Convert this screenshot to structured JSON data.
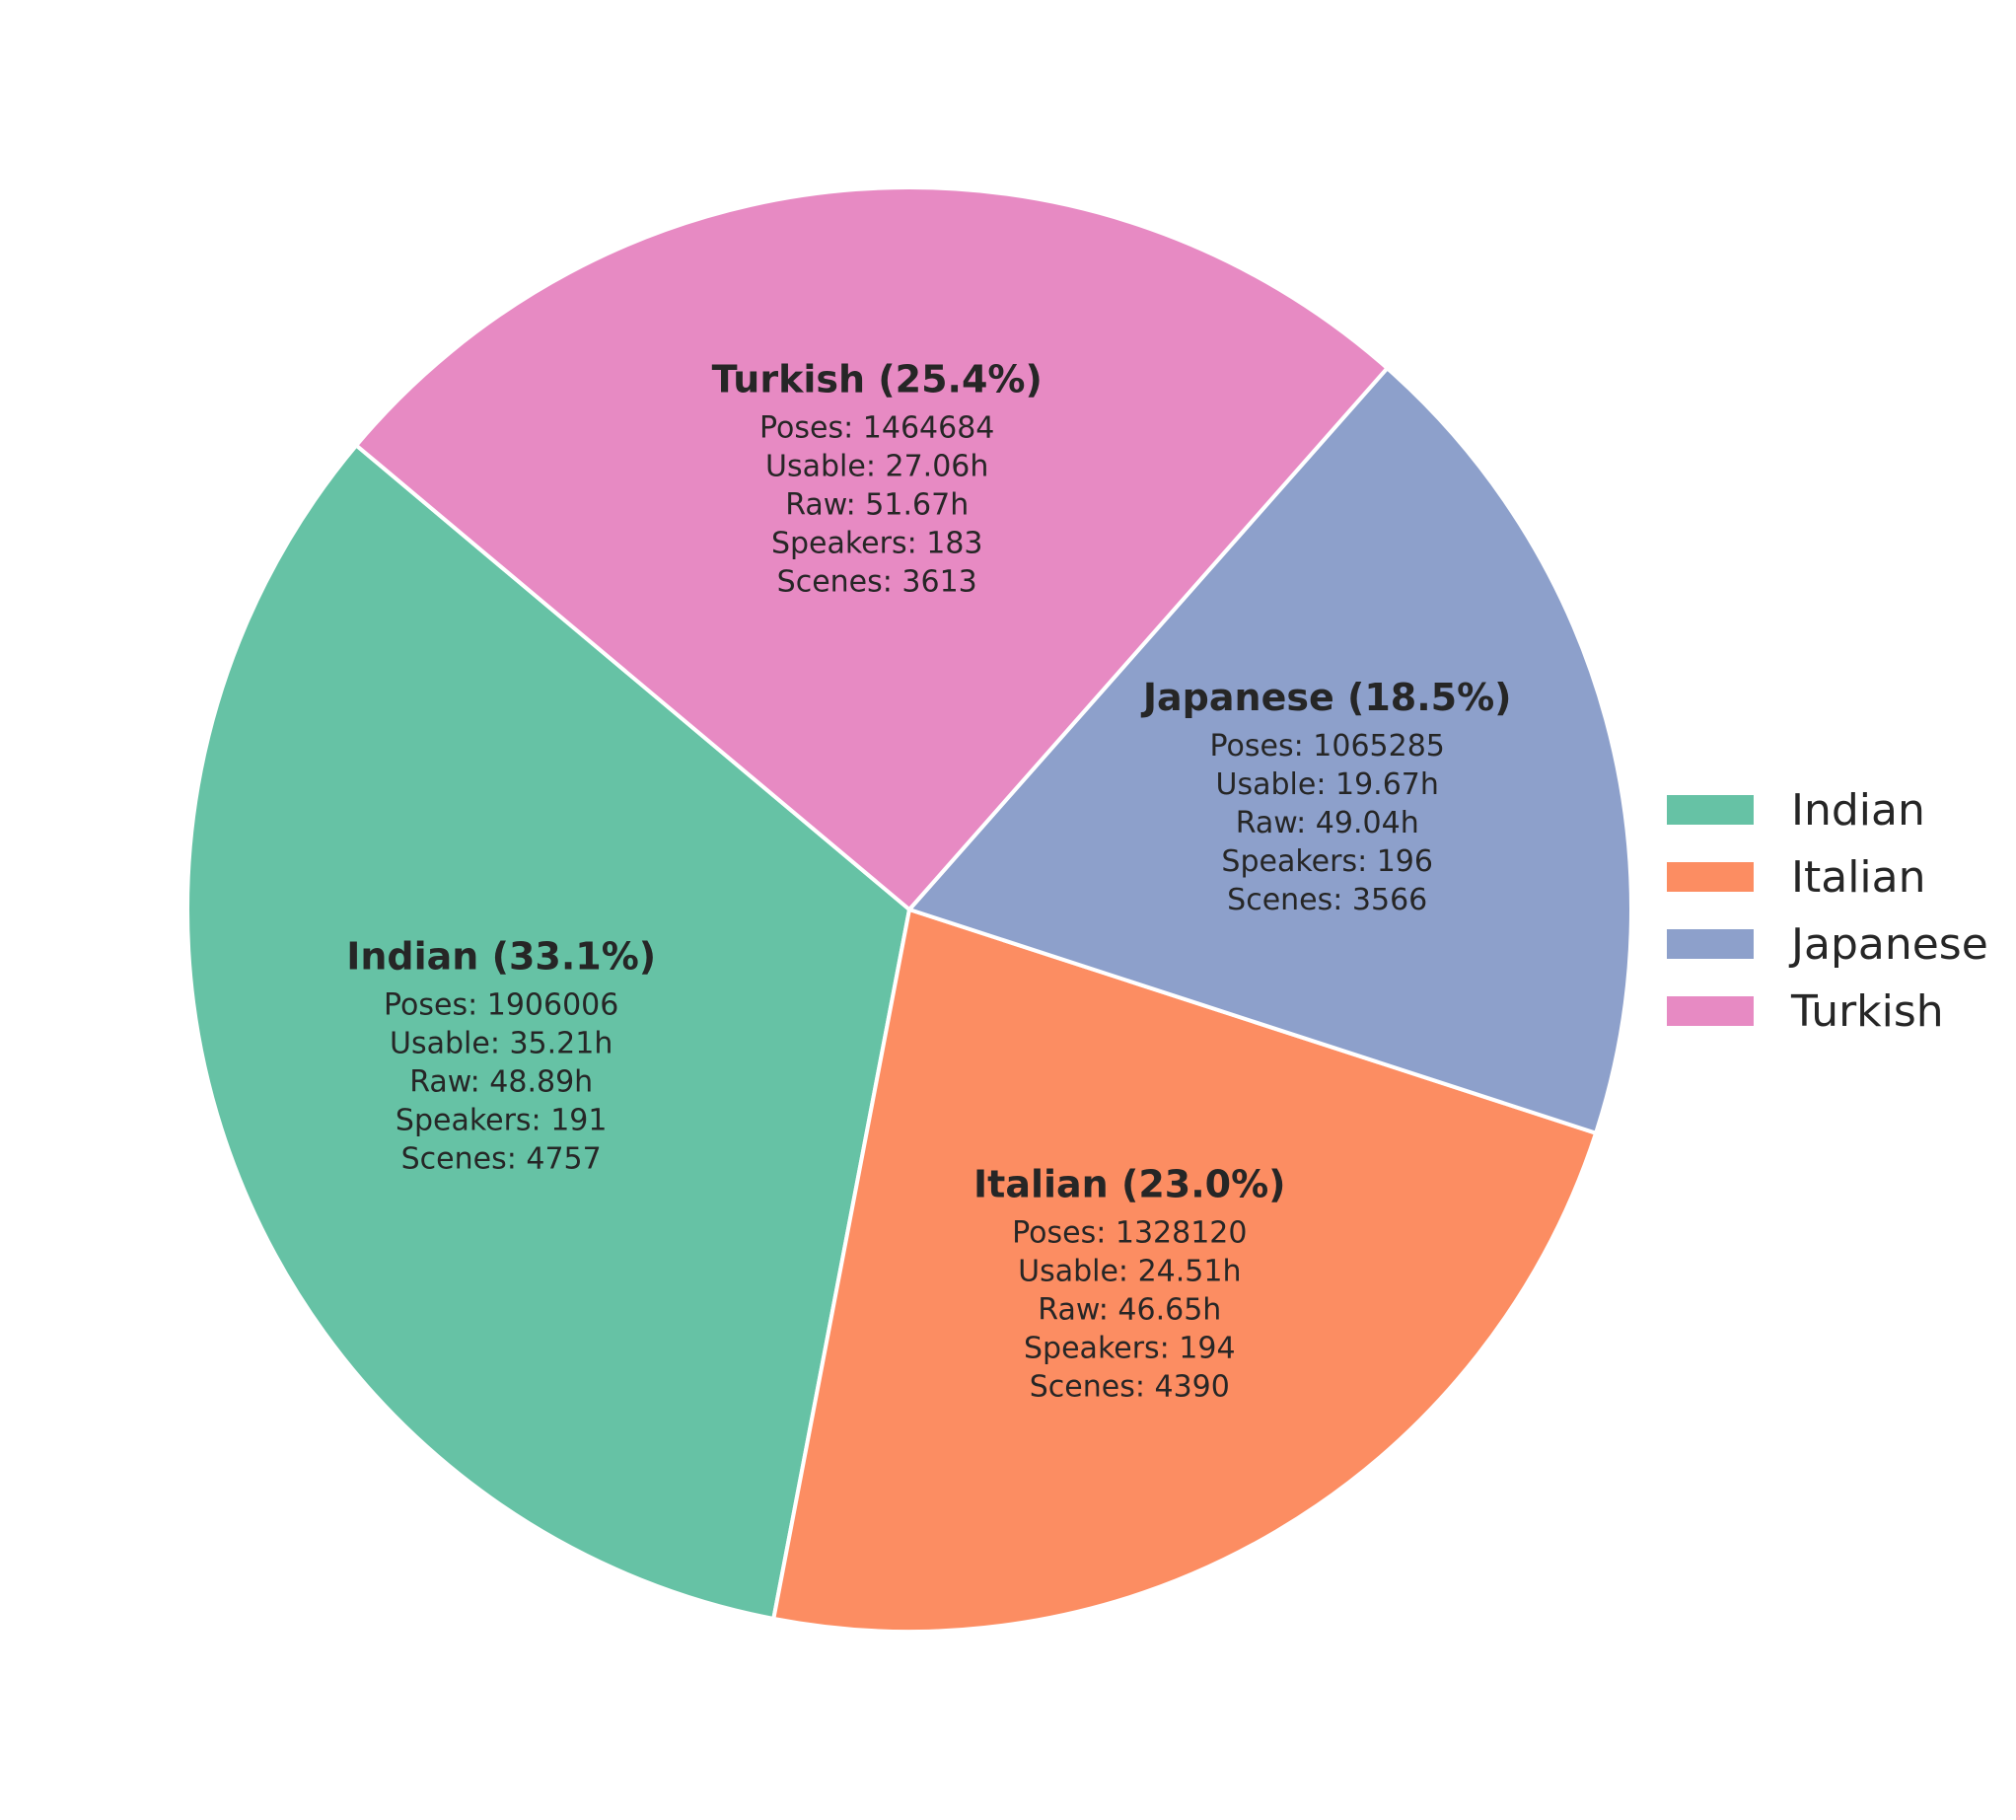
{
  "chart_data": {
    "type": "pie",
    "title": "",
    "start_angle_deg": 140,
    "direction": "counterclockwise",
    "legend_position": "center-right",
    "slices": [
      {
        "name": "Indian",
        "label": "Indian (33.1%)",
        "percent": 33.1,
        "color": "#66c2a5",
        "details": [
          "Poses: 1906006",
          "Usable: 35.21h",
          "Raw: 48.89h",
          "Speakers: 191",
          "Scenes: 4757"
        ]
      },
      {
        "name": "Italian",
        "label": "Italian (23.0%)",
        "percent": 23.0,
        "color": "#fc8d62",
        "details": [
          "Poses: 1328120",
          "Usable: 24.51h",
          "Raw: 46.65h",
          "Speakers: 194",
          "Scenes: 4390"
        ]
      },
      {
        "name": "Japanese",
        "label": "Japanese (18.5%)",
        "percent": 18.5,
        "color": "#8da0cb",
        "details": [
          "Poses: 1065285",
          "Usable: 19.67h",
          "Raw: 49.04h",
          "Speakers: 196",
          "Scenes: 3566"
        ]
      },
      {
        "name": "Turkish",
        "label": "Turkish (25.4%)",
        "percent": 25.4,
        "color": "#e78ac3",
        "details": [
          "Poses: 1464684",
          "Usable: 27.06h",
          "Raw: 51.67h",
          "Speakers: 183",
          "Scenes: 3613"
        ]
      }
    ],
    "legend": [
      "Indian",
      "Italian",
      "Japanese",
      "Turkish"
    ]
  }
}
